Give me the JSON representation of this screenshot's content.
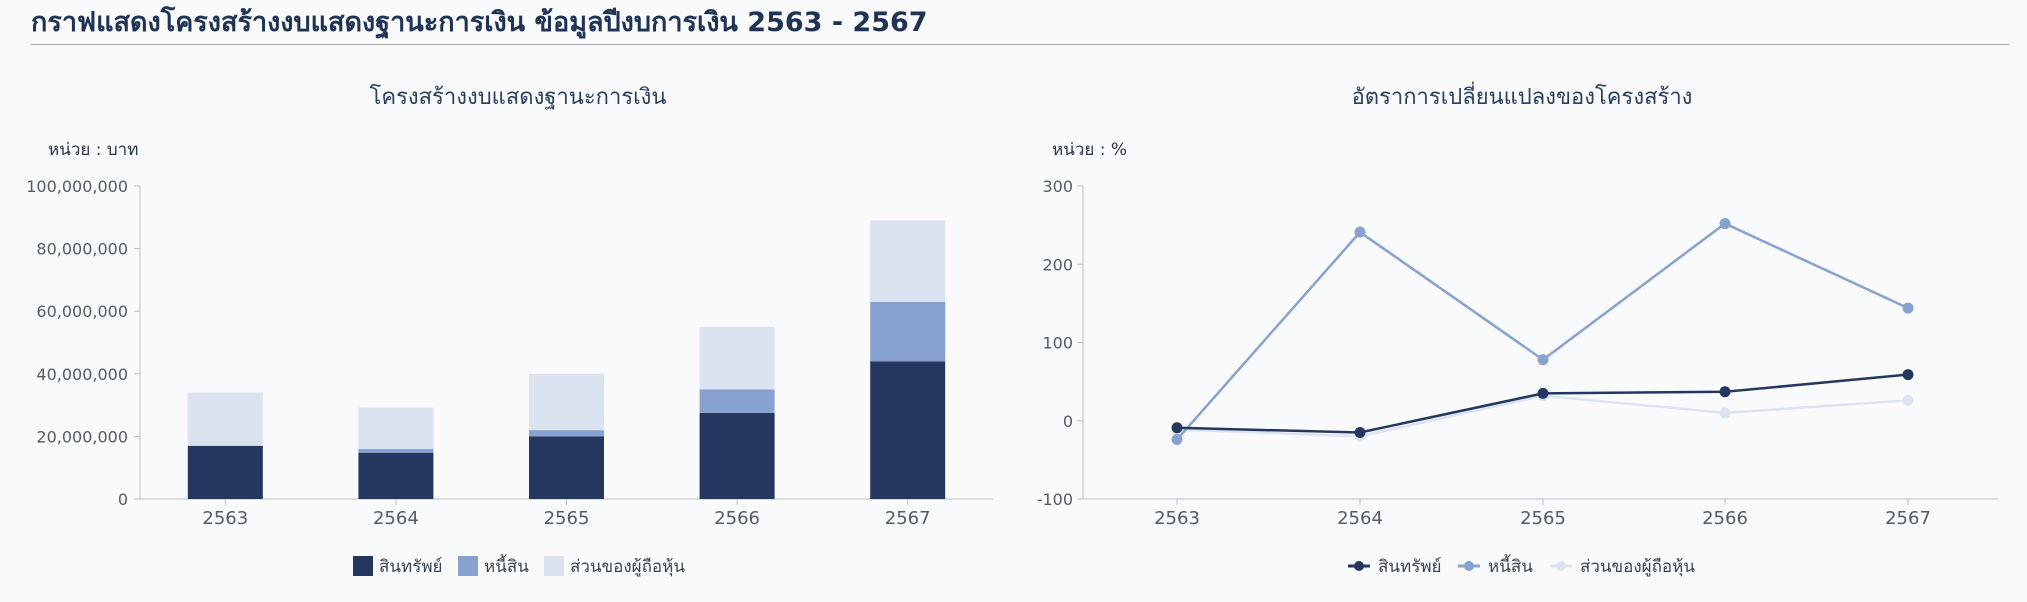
{
  "page": {
    "title": "กราฟแสดงโครงสร้างงบแสดงฐานะการเงิน ข้อมูลปีงบการเงิน 2563 - 2567"
  },
  "colors": {
    "assets": "#24385f",
    "liabilities": "#87a2d0",
    "equity": "#dce3f0",
    "axis": "#b9bec6"
  },
  "chart_data": [
    {
      "type": "bar",
      "stacked": true,
      "title": "โครงสร้างงบแสดงฐานะการเงิน",
      "unit_label": "หน่วย : บาท",
      "categories": [
        "2563",
        "2564",
        "2565",
        "2566",
        "2567"
      ],
      "series": [
        {
          "name": "สินทรัพย์",
          "values": [
            17000000,
            14800000,
            20000000,
            27500000,
            44000000
          ]
        },
        {
          "name": "หนี้สิน",
          "values": [
            0,
            1200000,
            2000000,
            7500000,
            19000000
          ]
        },
        {
          "name": "ส่วนของผู้ถือหุ้น",
          "values": [
            17000000,
            13200000,
            18000000,
            20000000,
            26000000
          ]
        }
      ],
      "ylim": [
        0,
        100000000
      ],
      "yticks": [
        "0",
        "20,000,000",
        "40,000,000",
        "60,000,000",
        "80,000,000",
        "100,000,000"
      ],
      "ytick_values": [
        0,
        20000000,
        40000000,
        60000000,
        80000000,
        100000000
      ],
      "legend_position": "bottom-center"
    },
    {
      "type": "line",
      "title": "อัตราการเปลี่ยนแปลงของโครงสร้าง",
      "unit_label": "หน่วย : %",
      "categories": [
        "2563",
        "2564",
        "2565",
        "2566",
        "2567"
      ],
      "series": [
        {
          "name": "สินทรัพย์",
          "values": [
            -9,
            -15,
            35,
            37,
            59
          ]
        },
        {
          "name": "หนี้สิน",
          "values": [
            -24,
            241,
            78,
            252,
            144
          ]
        },
        {
          "name": "ส่วนของผู้ถือหุ้น",
          "values": [
            -11,
            -20,
            32,
            10,
            26
          ]
        }
      ],
      "ylim": [
        -100,
        300
      ],
      "yticks": [
        "-100",
        "0",
        "100",
        "200",
        "300"
      ],
      "ytick_values": [
        -100,
        0,
        100,
        200,
        300
      ],
      "legend_position": "bottom-center"
    }
  ]
}
